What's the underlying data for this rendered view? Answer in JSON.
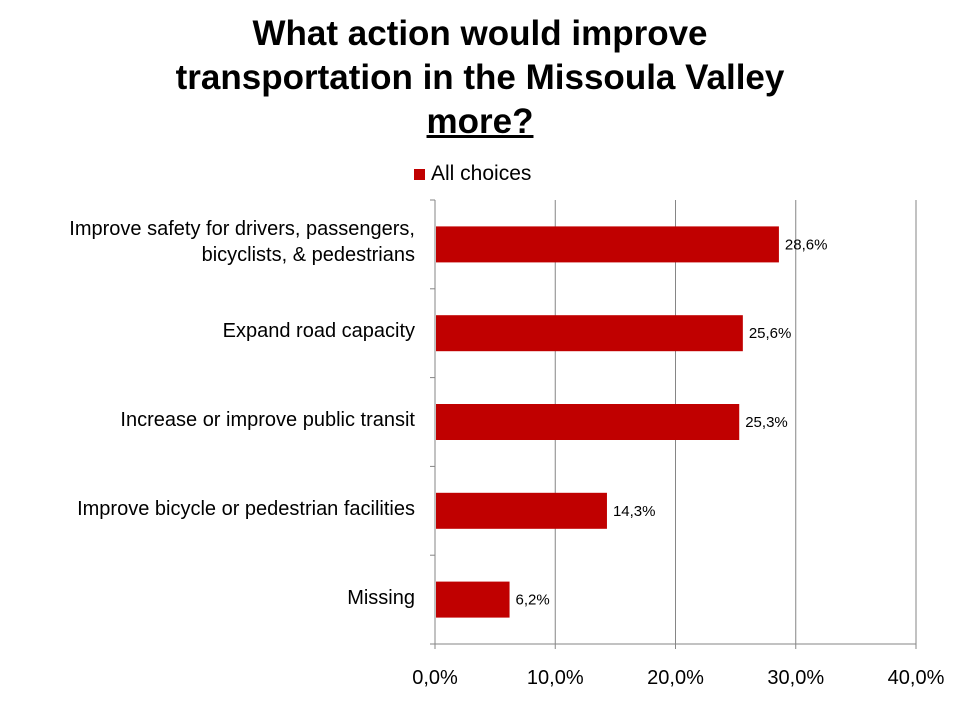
{
  "title": {
    "line1": "What action would improve",
    "line2": "transportation in the Missoula Valley",
    "line3": "more?"
  },
  "colors": {
    "bar": "#c00000",
    "grid": "#868686"
  },
  "chart_data": {
    "type": "bar",
    "orientation": "horizontal",
    "categories": [
      "Improve safety for drivers, passengers, bicyclists, & pedestrians",
      "Expand road capacity",
      "Increase or improve public transit",
      "Improve bicycle or pedestrian facilities",
      "Missing"
    ],
    "category_lines": [
      [
        "Improve safety for drivers, passengers,",
        "bicyclists, & pedestrians"
      ],
      [
        "Expand road capacity"
      ],
      [
        "Increase or improve public transit"
      ],
      [
        "Improve bicycle or pedestrian facilities"
      ],
      [
        "Missing"
      ]
    ],
    "series": [
      {
        "name": "All choices",
        "values": [
          28.6,
          25.6,
          25.3,
          14.3,
          6.2
        ],
        "data_labels": [
          "28,6%",
          "25,6%",
          "25,3%",
          "14,3%",
          "6,2%"
        ]
      }
    ],
    "xlim": [
      0,
      40
    ],
    "x_ticks": [
      0,
      10,
      20,
      30,
      40
    ],
    "x_tick_labels": [
      "0,0%",
      "10,0%",
      "20,0%",
      "30,0%",
      "40,0%"
    ],
    "grid": true,
    "legend_position": "top"
  }
}
